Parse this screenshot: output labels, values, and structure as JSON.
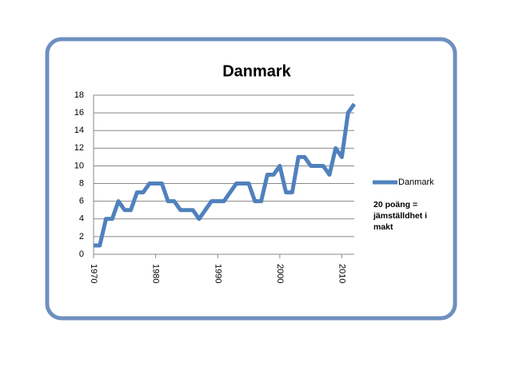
{
  "chart_data": {
    "type": "line",
    "title": "Danmark",
    "x": [
      1970,
      1971,
      1972,
      1973,
      1974,
      1975,
      1976,
      1977,
      1978,
      1979,
      1980,
      1981,
      1982,
      1983,
      1984,
      1985,
      1986,
      1987,
      1988,
      1989,
      1990,
      1991,
      1992,
      1993,
      1994,
      1995,
      1996,
      1997,
      1998,
      1999,
      2000,
      2001,
      2002,
      2003,
      2004,
      2005,
      2006,
      2007,
      2008,
      2009,
      2010,
      2011,
      2012
    ],
    "series": [
      {
        "name": "Danmark",
        "color": "#4f81bd",
        "values": [
          1,
          1,
          4,
          4,
          6,
          5,
          5,
          7,
          7,
          8,
          8,
          8,
          6,
          6,
          5,
          5,
          5,
          4,
          5,
          6,
          6,
          6,
          7,
          8,
          8,
          8,
          6,
          6,
          9,
          9,
          10,
          7,
          7,
          11,
          11,
          10,
          10,
          10,
          9,
          12,
          11,
          16,
          17
        ]
      }
    ],
    "xlim": [
      1970,
      2012
    ],
    "xticks": [
      1970,
      1980,
      1990,
      2000,
      2010
    ],
    "ylim": [
      0,
      18
    ],
    "yticks": [
      0,
      2,
      4,
      6,
      8,
      10,
      12,
      14,
      16,
      18
    ],
    "grid": true,
    "legend": "right",
    "annotation": [
      "20 poäng =",
      "jämställdhet i",
      "makt"
    ]
  }
}
